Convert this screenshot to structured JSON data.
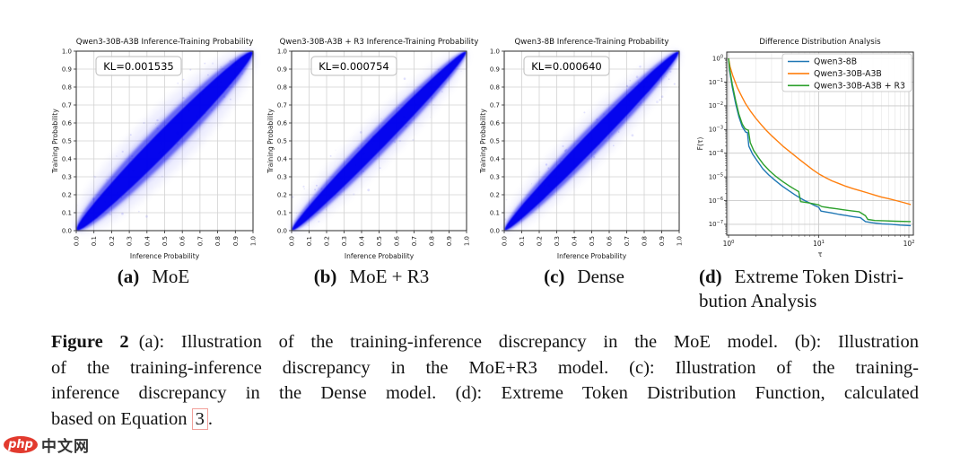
{
  "page": {
    "background": "#ffffff"
  },
  "watermark": {
    "logo_text": "php",
    "site_text": "中文网",
    "logo_color": "#e23a2e"
  },
  "subcaptions": [
    {
      "label": "(a)",
      "text": "MoE"
    },
    {
      "label": "(b)",
      "text": "MoE + R3"
    },
    {
      "label": "(c)",
      "text": "Dense"
    },
    {
      "label": "(d)",
      "line1": "Extreme Token Distri-",
      "line2": "bution Analysis"
    }
  ],
  "figure_caption": {
    "tag": "Figure 2",
    "line1_rest": "(a): Illustration of the training-inference discrepancy in the MoE model.  (b): Illustration",
    "line2": "of the training-inference discrepancy in the MoE+R3 model.  (c): Illustration of the training-",
    "line3": "inference discrepancy in the Dense model.  (d): Extreme Token Distribution Function, calculated",
    "line4_prefix": "based on Equation",
    "line4_ref": "3",
    "line4_suffix": "."
  },
  "chart_data": [
    {
      "type": "scatter",
      "panel": "a",
      "title": "Qwen3-30B-A3B Inference-Training Probability",
      "xlabel": "Inference Probability",
      "ylabel": "Training Probability",
      "xlim": [
        0.0,
        1.0
      ],
      "ylim": [
        0.0,
        1.0
      ],
      "tick_step": 0.1,
      "grid": true,
      "annotation": "KL=0.001535",
      "kl": 0.001535,
      "point_color": "#0000ee",
      "band": {
        "core": 0.056,
        "mid": 0.096,
        "halo": 0.152
      },
      "note": "dense blue density cloud of per-token probabilities along the y=x diagonal from (0,0) to (1,1); widest spread of the three panels"
    },
    {
      "type": "scatter",
      "panel": "b",
      "title": "Qwen3-30B-A3B + R3 Inference-Training Probability",
      "xlabel": "Inference Probability",
      "ylabel": "Training Probability",
      "xlim": [
        0.0,
        1.0
      ],
      "ylim": [
        0.0,
        1.0
      ],
      "tick_step": 0.1,
      "grid": true,
      "annotation": "KL=0.000754",
      "kl": 0.000754,
      "point_color": "#0000ee",
      "band": {
        "core": 0.041,
        "mid": 0.067,
        "halo": 0.103
      },
      "note": "narrow dense blue lens along the y=x diagonal"
    },
    {
      "type": "scatter",
      "panel": "c",
      "title": "Qwen3-8B Inference-Training Probability",
      "xlabel": "Inference Probability",
      "ylabel": "Training Probability",
      "xlim": [
        0.0,
        1.0
      ],
      "ylim": [
        0.0,
        1.0
      ],
      "tick_step": 0.1,
      "grid": true,
      "annotation": "KL=0.000640",
      "kl": 0.00064,
      "point_color": "#0000ee",
      "band": {
        "core": 0.043,
        "mid": 0.07,
        "halo": 0.107
      },
      "note": "narrow dense blue lens along the y=x diagonal"
    },
    {
      "type": "line",
      "panel": "d",
      "title": "Difference Distribution Analysis",
      "xlabel": "τ",
      "ylabel": "F(τ)",
      "xscale": "log",
      "yscale": "log",
      "xlim": [
        1,
        115
      ],
      "ylim_decades": [
        0,
        -7
      ],
      "grid": true,
      "legend_position": "upper right inside",
      "series": [
        {
          "name": "Qwen3-8B",
          "color": "#1f77b4",
          "points": [
            [
              1,
              1
            ],
            [
              1.03,
              0.3
            ],
            [
              1.1,
              0.06
            ],
            [
              1.2,
              0.012
            ],
            [
              1.3,
              0.0035
            ],
            [
              1.42,
              0.0013
            ],
            [
              1.55,
              0.00078
            ],
            [
              1.62,
              0.00074
            ],
            [
              1.68,
              0.0002
            ],
            [
              1.85,
              9e-05
            ],
            [
              2.1,
              4.5e-05
            ],
            [
              2.4,
              2.2e-05
            ],
            [
              2.8,
              1.2e-05
            ],
            [
              3.3,
              7e-06
            ],
            [
              3.9,
              4.2e-06
            ],
            [
              4.6,
              2.7e-06
            ],
            [
              5.4,
              1.8e-06
            ],
            [
              6.2,
              1.3e-06
            ],
            [
              7.0,
              1e-06
            ],
            [
              8.0,
              7.8e-07
            ],
            [
              9.0,
              6.2e-07
            ],
            [
              10.0,
              5.2e-07
            ],
            [
              10.6,
              3.6e-07
            ],
            [
              12,
              3.3e-07
            ],
            [
              14,
              3e-07
            ],
            [
              17,
              2.6e-07
            ],
            [
              20,
              2.35e-07
            ],
            [
              24,
              2.1e-07
            ],
            [
              29,
              1.9e-07
            ],
            [
              33,
              1.3e-07
            ],
            [
              40,
              1.15e-07
            ],
            [
              50,
              1.05e-07
            ],
            [
              63,
              1e-07
            ],
            [
              80,
              9.3e-08
            ],
            [
              105,
              8.8e-08
            ]
          ]
        },
        {
          "name": "Qwen3-30B-A3B",
          "color": "#ff7f0e",
          "points": [
            [
              1,
              1
            ],
            [
              1.04,
              0.45
            ],
            [
              1.12,
              0.18
            ],
            [
              1.25,
              0.06
            ],
            [
              1.4,
              0.025
            ],
            [
              1.55,
              0.012
            ],
            [
              1.75,
              0.006
            ],
            [
              2.0,
              0.003
            ],
            [
              2.3,
              0.0016
            ],
            [
              2.6,
              0.00095
            ],
            [
              3.0,
              0.00055
            ],
            [
              3.5,
              0.00032
            ],
            [
              4.0,
              0.0002
            ],
            [
              4.6,
              0.00013
            ],
            [
              5.4,
              8e-05
            ],
            [
              6.3,
              5e-05
            ],
            [
              7.4,
              3.1e-05
            ],
            [
              8.6,
              2e-05
            ],
            [
              10,
              1.35e-05
            ],
            [
              12,
              9.2e-06
            ],
            [
              14,
              6.8e-06
            ],
            [
              17,
              5.1e-06
            ],
            [
              20,
              4e-06
            ],
            [
              24,
              3.2e-06
            ],
            [
              29,
              2.6e-06
            ],
            [
              35,
              2.1e-06
            ],
            [
              42,
              1.7e-06
            ],
            [
              50,
              1.4e-06
            ],
            [
              60,
              1.2e-06
            ],
            [
              72,
              1e-06
            ],
            [
              86,
              8.4e-07
            ],
            [
              105,
              6.8e-07
            ]
          ]
        },
        {
          "name": "Qwen3-30B-A3B + R3",
          "color": "#2ca02c",
          "points": [
            [
              1,
              1
            ],
            [
              1.03,
              0.35
            ],
            [
              1.1,
              0.08
            ],
            [
              1.2,
              0.016
            ],
            [
              1.3,
              0.0045
            ],
            [
              1.42,
              0.0017
            ],
            [
              1.52,
              0.0011
            ],
            [
              1.6,
              0.00098
            ],
            [
              1.66,
              0.00094
            ],
            [
              1.74,
              0.00028
            ],
            [
              1.9,
              0.00013
            ],
            [
              2.15,
              6.5e-05
            ],
            [
              2.45,
              3.3e-05
            ],
            [
              2.85,
              1.8e-05
            ],
            [
              3.35,
              1.05e-05
            ],
            [
              3.95,
              6.5e-06
            ],
            [
              4.7,
              4.2e-06
            ],
            [
              5.5,
              2.9e-06
            ],
            [
              6.0,
              2.4e-06
            ],
            [
              6.3,
              9e-07
            ],
            [
              7.5,
              8.2e-07
            ],
            [
              9,
              7.2e-07
            ],
            [
              10,
              6.6e-07
            ],
            [
              10.8,
              5.6e-07
            ],
            [
              13,
              5e-07
            ],
            [
              16,
              4.5e-07
            ],
            [
              19,
              4.1e-07
            ],
            [
              23,
              3.7e-07
            ],
            [
              28,
              3.4e-07
            ],
            [
              33,
              2.3e-07
            ],
            [
              35,
              1.6e-07
            ],
            [
              42,
              1.45e-07
            ],
            [
              55,
              1.4e-07
            ],
            [
              70,
              1.35e-07
            ],
            [
              105,
              1.3e-07
            ]
          ]
        }
      ]
    }
  ]
}
